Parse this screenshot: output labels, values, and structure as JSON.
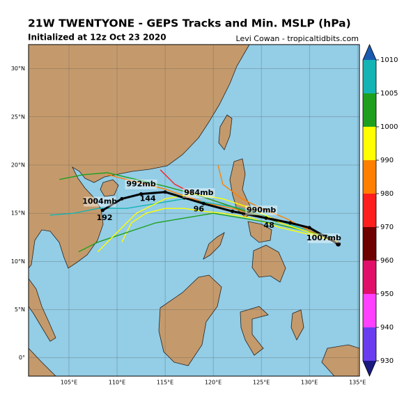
{
  "chart_data": {
    "type": "track_map",
    "title": "21W TWENTYONE - GEPS Tracks and Min. MSLP (hPa)",
    "subtitle": "Initialized at 12z Oct 23 2020",
    "credit": "Levi Cowan - tropicaltidbits.com",
    "xlim": [
      100.8,
      135.2
    ],
    "ylim": [
      -1.9,
      32.5
    ],
    "xticks": [
      {
        "value": 105,
        "label": "105°E"
      },
      {
        "value": 110,
        "label": "110°E"
      },
      {
        "value": 115,
        "label": "115°E"
      },
      {
        "value": 120,
        "label": "120°E"
      },
      {
        "value": 125,
        "label": "125°E"
      },
      {
        "value": 130,
        "label": "130°E"
      },
      {
        "value": 135,
        "label": "135°E"
      }
    ],
    "yticks": [
      {
        "value": 0,
        "label": "0°"
      },
      {
        "value": 5,
        "label": "5°N"
      },
      {
        "value": 10,
        "label": "10°N"
      },
      {
        "value": 15,
        "label": "15°N"
      },
      {
        "value": 20,
        "label": "20°N"
      },
      {
        "value": 25,
        "label": "25°N"
      },
      {
        "value": 30,
        "label": "30°N"
      }
    ],
    "grid": true,
    "colorbar": {
      "ticks": [
        930,
        940,
        950,
        960,
        970,
        980,
        990,
        1000,
        1005,
        1010
      ],
      "colors": [
        "#6a3cf0",
        "#ff40ff",
        "#e0106a",
        "#6e0000",
        "#ff1e1e",
        "#ff8000",
        "#ffff00",
        "#1ea01e",
        "#14b4b4"
      ],
      "under_color": "#1a1a80",
      "over_color": "#1a5ab0"
    },
    "members": [
      {
        "color": "#ff8000",
        "lon": [
          133,
          130.5,
          128,
          125,
          122,
          119.5,
          117,
          115,
          113,
          111,
          109
        ],
        "lat": [
          12,
          13.2,
          14,
          14.8,
          15.5,
          16,
          16.8,
          17.5,
          18,
          18.5,
          19
        ]
      },
      {
        "color": "#ff1e1e",
        "lon": [
          133,
          130,
          127,
          124,
          121,
          118,
          116,
          114.5
        ],
        "lat": [
          12,
          13,
          14,
          15,
          16,
          17,
          18,
          19.5
        ]
      },
      {
        "color": "#14b4b4",
        "lon": [
          132.5,
          129,
          126,
          123,
          120,
          117,
          114,
          111,
          108,
          105.5,
          103
        ],
        "lat": [
          12.5,
          13.5,
          14.5,
          15.5,
          16,
          16.5,
          16,
          15.5,
          15.5,
          15,
          14.8
        ]
      },
      {
        "color": "#ffff00",
        "lon": [
          133,
          130,
          127,
          124,
          121,
          119,
          117,
          115,
          113,
          111.5,
          110.5
        ],
        "lat": [
          12,
          12.8,
          13.5,
          14.5,
          15,
          15.2,
          15.5,
          15.5,
          15,
          14,
          12
        ]
      },
      {
        "color": "#1ea01e",
        "lon": [
          133,
          130,
          127,
          124,
          121,
          118,
          115,
          112,
          109,
          106.5,
          104
        ],
        "lat": [
          12,
          13,
          14,
          15,
          16,
          17,
          17.8,
          18.5,
          19.2,
          19,
          18.5
        ]
      },
      {
        "color": "#ff8000",
        "lon": [
          133,
          130,
          127.5,
          125,
          123,
          121,
          120.5
        ],
        "lat": [
          12,
          13.2,
          14.5,
          15.5,
          16.5,
          18,
          20
        ]
      },
      {
        "color": "#1ea01e",
        "lon": [
          132,
          129,
          126,
          123,
          120,
          117,
          114,
          111,
          108,
          106
        ],
        "lat": [
          12.5,
          13.3,
          14,
          14.5,
          15,
          14.5,
          14,
          13,
          12,
          11
        ]
      },
      {
        "color": "#ffff00",
        "lon": [
          133,
          130,
          127,
          124,
          121,
          118,
          115,
          112,
          110,
          108
        ],
        "lat": [
          12,
          13,
          14,
          15.5,
          16.5,
          17,
          16.5,
          15,
          13,
          11
        ]
      }
    ],
    "mean_track": {
      "lon": [
        133,
        130,
        128,
        125.5,
        122,
        119,
        117,
        115,
        112.5,
        110.5,
        108.5
      ],
      "lat": [
        11.8,
        13.5,
        14,
        14.5,
        15.2,
        16,
        16.6,
        17.2,
        17,
        16.5,
        15.3
      ]
    },
    "pressure_labels": [
      {
        "lon": 131.5,
        "lat": 12.4,
        "value": 1007,
        "label": "1007mb"
      },
      {
        "lon": 125,
        "lat": 15.3,
        "value": 990,
        "label": "990mb"
      },
      {
        "lon": 118.5,
        "lat": 17.1,
        "value": 984,
        "label": "984mb"
      },
      {
        "lon": 112.5,
        "lat": 18,
        "value": 992,
        "label": "992mb"
      },
      {
        "lon": 108.2,
        "lat": 16.2,
        "value": 1004,
        "label": "1004mb"
      }
    ],
    "hour_labels": [
      {
        "lon": 125.8,
        "lat": 13.7,
        "value": 48
      },
      {
        "lon": 118.5,
        "lat": 15.4,
        "value": 96
      },
      {
        "lon": 113.2,
        "lat": 16.5,
        "value": 144
      },
      {
        "lon": 108.7,
        "lat": 14.5,
        "value": 192
      }
    ]
  }
}
